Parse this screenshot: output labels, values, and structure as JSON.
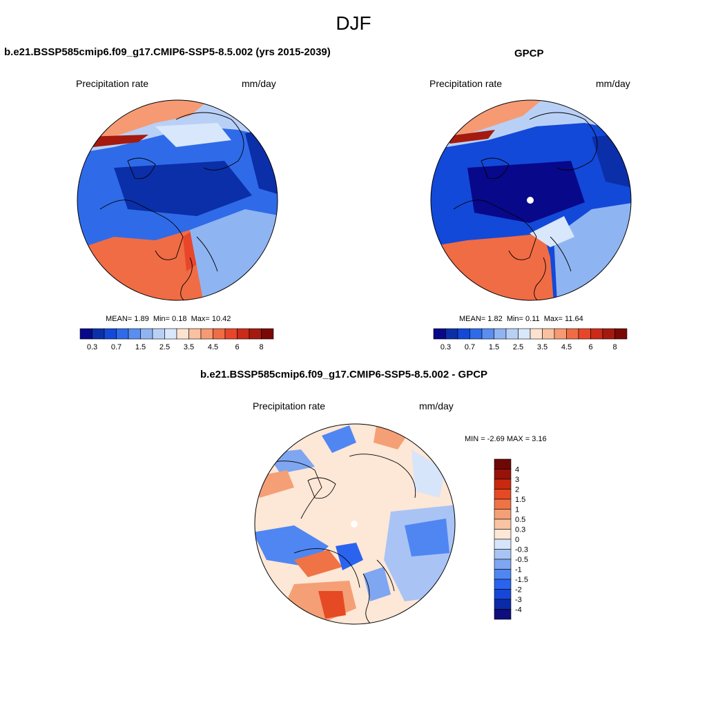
{
  "page": {
    "title": "DJF"
  },
  "colors": {
    "seq": [
      "#08088a",
      "#0b2fa8",
      "#1349d8",
      "#2f6be8",
      "#5a8ef0",
      "#8fb4f2",
      "#b9d0f6",
      "#d8e7fb",
      "#fde3cf",
      "#f9c1a0",
      "#f69a73",
      "#f06c45",
      "#e8462a",
      "#cc2a18",
      "#a51a0f",
      "#7a0906"
    ],
    "diff": [
      "#0e0e7d",
      "#0b2aa7",
      "#1747d8",
      "#2a64ee",
      "#4f86f2",
      "#7ea6f1",
      "#a9c4f4",
      "#d7e5fb",
      "#fde7d6",
      "#f9c4a3",
      "#f59f76",
      "#ef7345",
      "#e64a24",
      "#c9290f",
      "#98120a",
      "#6d0807"
    ],
    "land": "#000000"
  },
  "panels": {
    "model": {
      "title": "b.e21.BSSP585cmip6.f09_g17.CMIP6-SSP5-8.5.002 (yrs 2015-2039)",
      "variable": "Precipitation rate",
      "units": "mm/day",
      "stats": {
        "mean_label": "MEAN=",
        "mean": "1.89",
        "min_label": "Min=",
        "min": "0.18",
        "max_label": "Max=",
        "max": "10.42"
      },
      "colorbar_ticks": [
        "0.3",
        "0.7",
        "1.5",
        "2.5",
        "3.5",
        "4.5",
        "6",
        "8"
      ]
    },
    "obs": {
      "title": "GPCP",
      "variable": "Precipitation rate",
      "units": "mm/day",
      "stats": {
        "mean_label": "MEAN=",
        "mean": "1.82",
        "min_label": "Min=",
        "min": "0.11",
        "max_label": "Max=",
        "max": "11.64"
      },
      "colorbar_ticks": [
        "0.3",
        "0.7",
        "1.5",
        "2.5",
        "3.5",
        "4.5",
        "6",
        "8"
      ]
    },
    "diff": {
      "title": "b.e21.BSSP585cmip6.f09_g17.CMIP6-SSP5-8.5.002 - GPCP",
      "variable": "Precipitation rate",
      "units": "mm/day",
      "stats": {
        "min_label": "MIN =",
        "min": "-2.69",
        "max_label": "MAX =",
        "max": "3.16"
      },
      "colorbar_ticks": [
        "4",
        "3",
        "2",
        "1.5",
        "1",
        "0.5",
        "0.3",
        "0",
        "-0.3",
        "-0.5",
        "-1",
        "-1.5",
        "-2",
        "-3",
        "-4"
      ]
    }
  }
}
